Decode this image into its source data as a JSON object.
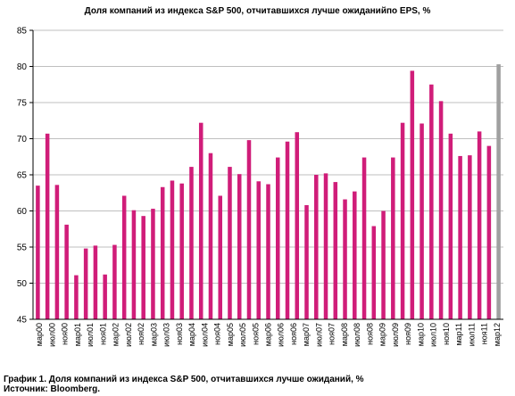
{
  "title": "Доля компаний из индекса S&P 500, отчитавшихся лучше ожиданийпо EPS, %",
  "caption": "График 1. Доля компаний из индекса S&P 500, отчитавшихся лучше ожиданий, %",
  "source": "Источник: Bloomberg.",
  "colors": {
    "bar": "#d01d79",
    "last_bar": "#a0a0a0",
    "grid": "#bfbfbf",
    "axis": "#000000"
  },
  "chart_data": {
    "type": "bar",
    "title": "Доля компаний из индекса S&P 500, отчитавшихся лучше ожиданийпо EPS, %",
    "xlabel": "",
    "ylabel": "",
    "ylim": [
      45,
      85
    ],
    "yticks": [
      45,
      50,
      55,
      60,
      65,
      70,
      75,
      80,
      85
    ],
    "grid": true,
    "x_tick_labels": [
      "мар00",
      "июл00",
      "ноя00",
      "мар01",
      "июл01",
      "ноя01",
      "мар02",
      "июл02",
      "ноя02",
      "мар03",
      "июл03",
      "ноя03",
      "мар04",
      "июл04",
      "ноя04",
      "мар05",
      "июл05",
      "ноя05",
      "мар06",
      "июл06",
      "ноя06",
      "мар07",
      "июл07",
      "ноя07",
      "мар08",
      "июл08",
      "ноя08",
      "мар09",
      "июл09",
      "ноя09",
      "мар10",
      "июл10",
      "ноя10",
      "мар11",
      "июл11",
      "ноя11",
      "мар12"
    ],
    "values": [
      63.5,
      70.7,
      63.6,
      58.1,
      51.1,
      54.8,
      55.2,
      51.2,
      55.3,
      62.1,
      60.1,
      59.3,
      60.3,
      63.3,
      64.2,
      63.8,
      66.1,
      72.2,
      68.0,
      62.1,
      66.1,
      65.1,
      69.8,
      64.1,
      63.7,
      67.4,
      69.6,
      70.9,
      60.8,
      65.0,
      65.2,
      64.0,
      61.6,
      62.7,
      67.4,
      57.9,
      60.0,
      67.4,
      72.2,
      79.4,
      72.1,
      77.5,
      75.2,
      70.7,
      67.6,
      67.7,
      71.0,
      69.0,
      80.3
    ]
  }
}
